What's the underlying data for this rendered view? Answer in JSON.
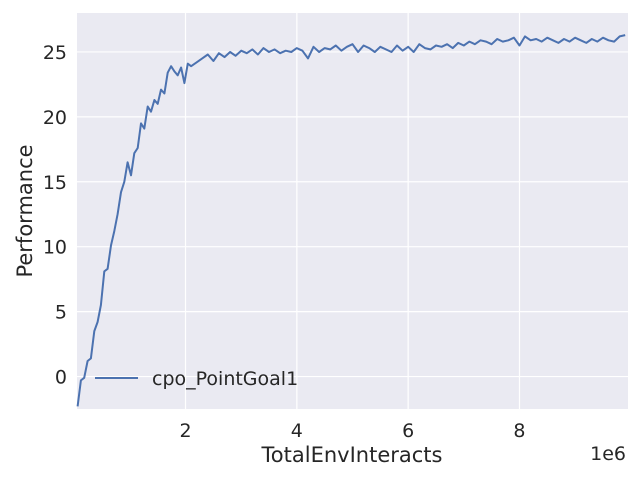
{
  "chart_data": {
    "type": "line",
    "title": "",
    "xlabel": "TotalEnvInteracts",
    "ylabel": "Performance",
    "x_offset_label": "1e6",
    "xlim": [
      50000,
      9950000
    ],
    "ylim": [
      -2.5,
      28
    ],
    "x_ticks": [
      2000000,
      4000000,
      6000000,
      8000000
    ],
    "x_tick_labels": [
      "2",
      "4",
      "6",
      "8"
    ],
    "y_ticks": [
      0,
      5,
      10,
      15,
      20,
      25
    ],
    "y_tick_labels": [
      "0",
      "5",
      "10",
      "15",
      "20",
      "25"
    ],
    "grid": true,
    "legend": {
      "position": "lower-left"
    },
    "colors": {
      "background": "#eaeaf2",
      "grid": "#ffffff",
      "series": "#4c72b0"
    },
    "series": [
      {
        "name": "cpo_PointGoal1",
        "x": [
          60000,
          120000,
          180000,
          240000,
          300000,
          360000,
          420000,
          480000,
          540000,
          600000,
          660000,
          720000,
          780000,
          840000,
          900000,
          960000,
          1020000,
          1080000,
          1140000,
          1200000,
          1260000,
          1320000,
          1380000,
          1440000,
          1500000,
          1560000,
          1620000,
          1680000,
          1740000,
          1800000,
          1860000,
          1920000,
          1980000,
          2040000,
          2100000,
          2200000,
          2300000,
          2400000,
          2500000,
          2600000,
          2700000,
          2800000,
          2900000,
          3000000,
          3100000,
          3200000,
          3300000,
          3400000,
          3500000,
          3600000,
          3700000,
          3800000,
          3900000,
          4000000,
          4100000,
          4200000,
          4300000,
          4400000,
          4500000,
          4600000,
          4700000,
          4800000,
          4900000,
          5000000,
          5100000,
          5200000,
          5300000,
          5400000,
          5500000,
          5600000,
          5700000,
          5800000,
          5900000,
          6000000,
          6100000,
          6200000,
          6300000,
          6400000,
          6500000,
          6600000,
          6700000,
          6800000,
          6900000,
          7000000,
          7100000,
          7200000,
          7300000,
          7400000,
          7500000,
          7600000,
          7700000,
          7800000,
          7900000,
          8000000,
          8100000,
          8200000,
          8300000,
          8400000,
          8500000,
          8600000,
          8700000,
          8800000,
          8900000,
          9000000,
          9100000,
          9200000,
          9300000,
          9400000,
          9500000,
          9600000,
          9700000,
          9800000,
          9900000
        ],
        "y": [
          -2.3,
          -0.3,
          -0.1,
          1.2,
          1.4,
          3.5,
          4.2,
          5.5,
          8.1,
          8.3,
          10.1,
          11.2,
          12.5,
          14.2,
          15.0,
          16.5,
          15.5,
          17.2,
          17.6,
          19.5,
          19.1,
          20.8,
          20.4,
          21.3,
          21.0,
          22.1,
          21.8,
          23.4,
          23.9,
          23.5,
          23.2,
          23.8,
          22.6,
          24.1,
          23.9,
          24.2,
          24.5,
          24.8,
          24.3,
          24.9,
          24.6,
          25.0,
          24.7,
          25.1,
          24.9,
          25.2,
          24.8,
          25.3,
          25.0,
          25.2,
          24.9,
          25.1,
          25.0,
          25.3,
          25.1,
          24.5,
          25.4,
          25.0,
          25.3,
          25.2,
          25.5,
          25.1,
          25.4,
          25.6,
          25.0,
          25.5,
          25.3,
          25.0,
          25.4,
          25.2,
          25.0,
          25.5,
          25.1,
          25.4,
          25.0,
          25.6,
          25.3,
          25.2,
          25.5,
          25.4,
          25.6,
          25.3,
          25.7,
          25.5,
          25.8,
          25.6,
          25.9,
          25.8,
          25.6,
          26.0,
          25.8,
          25.9,
          26.1,
          25.5,
          26.2,
          25.9,
          26.0,
          25.8,
          26.1,
          25.9,
          25.7,
          26.0,
          25.8,
          26.1,
          25.9,
          25.7,
          26.0,
          25.8,
          26.1,
          25.9,
          25.8,
          26.2,
          26.3
        ]
      }
    ]
  }
}
